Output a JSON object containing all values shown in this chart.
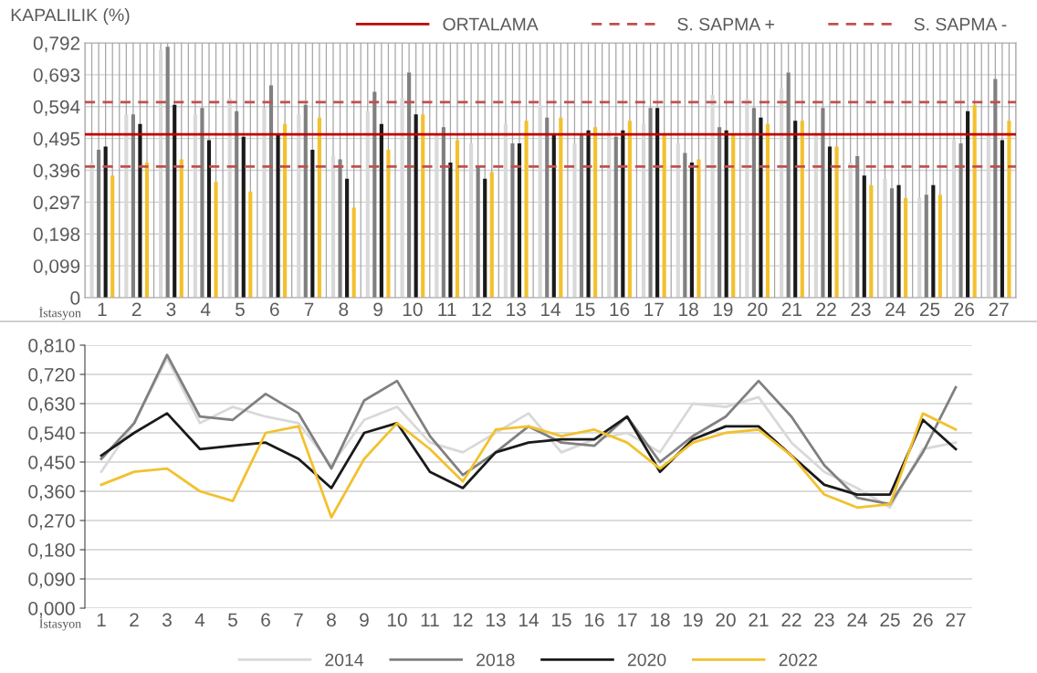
{
  "chart_data": [
    {
      "type": "bar",
      "ylabel": "KAPALILIK (%)",
      "xlabel": "İstasyon",
      "categories": [
        "1",
        "2",
        "3",
        "4",
        "5",
        "6",
        "7",
        "8",
        "9",
        "10",
        "11",
        "12",
        "13",
        "14",
        "15",
        "16",
        "17",
        "18",
        "19",
        "20",
        "21",
        "22",
        "23",
        "24",
        "25",
        "26",
        "27"
      ],
      "series": [
        {
          "color": "#d9d9d9",
          "values": [
            0.42,
            0.57,
            0.77,
            0.57,
            0.62,
            0.59,
            0.57,
            0.44,
            0.58,
            0.62,
            0.51,
            0.48,
            0.54,
            0.6,
            0.48,
            0.52,
            0.54,
            0.48,
            0.63,
            0.62,
            0.65,
            0.51,
            0.42,
            0.37,
            0.31,
            0.49,
            0.51
          ]
        },
        {
          "color": "#808080",
          "values": [
            0.46,
            0.57,
            0.78,
            0.59,
            0.58,
            0.66,
            0.6,
            0.43,
            0.64,
            0.7,
            0.53,
            0.41,
            0.48,
            0.56,
            0.51,
            0.5,
            0.59,
            0.45,
            0.53,
            0.59,
            0.7,
            0.59,
            0.44,
            0.34,
            0.32,
            0.48,
            0.68
          ]
        },
        {
          "color": "#1a1a1a",
          "values": [
            0.47,
            0.54,
            0.6,
            0.49,
            0.5,
            0.51,
            0.46,
            0.37,
            0.54,
            0.57,
            0.42,
            0.37,
            0.48,
            0.51,
            0.52,
            0.52,
            0.59,
            0.42,
            0.52,
            0.56,
            0.55,
            0.47,
            0.38,
            0.35,
            0.35,
            0.58,
            0.49
          ]
        },
        {
          "color": "#f2c12e",
          "values": [
            0.38,
            0.42,
            0.43,
            0.36,
            0.33,
            0.54,
            0.56,
            0.28,
            0.46,
            0.57,
            0.49,
            0.39,
            0.55,
            0.56,
            0.53,
            0.55,
            0.51,
            0.43,
            0.51,
            0.54,
            0.55,
            0.47,
            0.35,
            0.31,
            0.32,
            0.6,
            0.55
          ]
        }
      ],
      "ylim": [
        0,
        0.792
      ],
      "yticks": [
        {
          "value": 0,
          "label": "0"
        },
        {
          "value": 0.099,
          "label": "0,099"
        },
        {
          "value": 0.198,
          "label": "0,198"
        },
        {
          "value": 0.297,
          "label": "0,297"
        },
        {
          "value": 0.396,
          "label": "0,396"
        },
        {
          "value": 0.495,
          "label": "0,495"
        },
        {
          "value": 0.594,
          "label": "0,594"
        },
        {
          "value": 0.693,
          "label": "0,693"
        },
        {
          "value": 0.792,
          "label": "0,792"
        }
      ],
      "ref_lines": [
        {
          "axis": "y",
          "value": 0.508,
          "label": "ORTALAMA",
          "color": "#c00000",
          "line_style": "solid"
        },
        {
          "axis": "y",
          "value": 0.608,
          "label": "S. SAPMA +",
          "color": "#c0504d",
          "line_style": "dashed"
        },
        {
          "axis": "y",
          "value": 0.408,
          "label": "S. SAPMA -",
          "color": "#c0504d",
          "line_style": "dashed"
        }
      ],
      "grid": true,
      "legend": "top right"
    },
    {
      "type": "line",
      "xlabel": "İstasyon",
      "categories": [
        "1",
        "2",
        "3",
        "4",
        "5",
        "6",
        "7",
        "8",
        "9",
        "10",
        "11",
        "12",
        "13",
        "14",
        "15",
        "16",
        "17",
        "18",
        "19",
        "20",
        "21",
        "22",
        "23",
        "24",
        "25",
        "26",
        "27"
      ],
      "series": [
        {
          "name": "2014",
          "color": "#d9d9d9",
          "values": [
            0.42,
            0.57,
            0.77,
            0.57,
            0.62,
            0.59,
            0.57,
            0.44,
            0.58,
            0.62,
            0.51,
            0.48,
            0.54,
            0.6,
            0.48,
            0.52,
            0.54,
            0.48,
            0.63,
            0.62,
            0.65,
            0.51,
            0.42,
            0.37,
            0.31,
            0.49,
            0.51
          ]
        },
        {
          "name": "2018",
          "color": "#808080",
          "values": [
            0.46,
            0.57,
            0.78,
            0.59,
            0.58,
            0.66,
            0.6,
            0.43,
            0.64,
            0.7,
            0.53,
            0.41,
            0.48,
            0.56,
            0.51,
            0.5,
            0.59,
            0.45,
            0.53,
            0.59,
            0.7,
            0.59,
            0.44,
            0.34,
            0.32,
            0.48,
            0.68
          ]
        },
        {
          "name": "2020",
          "color": "#1a1a1a",
          "values": [
            0.47,
            0.54,
            0.6,
            0.49,
            0.5,
            0.51,
            0.46,
            0.37,
            0.54,
            0.57,
            0.42,
            0.37,
            0.48,
            0.51,
            0.52,
            0.52,
            0.59,
            0.42,
            0.52,
            0.56,
            0.56,
            0.47,
            0.38,
            0.35,
            0.35,
            0.58,
            0.49
          ]
        },
        {
          "name": "2022",
          "color": "#f2c12e",
          "values": [
            0.38,
            0.42,
            0.43,
            0.36,
            0.33,
            0.54,
            0.56,
            0.28,
            0.46,
            0.57,
            0.49,
            0.39,
            0.55,
            0.56,
            0.53,
            0.55,
            0.51,
            0.43,
            0.51,
            0.54,
            0.55,
            0.47,
            0.35,
            0.31,
            0.32,
            0.6,
            0.55
          ]
        }
      ],
      "ylim": [
        0,
        0.81
      ],
      "yticks": [
        {
          "value": 0,
          "label": "0,000"
        },
        {
          "value": 0.09,
          "label": "0,090"
        },
        {
          "value": 0.18,
          "label": "0,180"
        },
        {
          "value": 0.27,
          "label": "0,270"
        },
        {
          "value": 0.36,
          "label": "0,360"
        },
        {
          "value": 0.45,
          "label": "0,450"
        },
        {
          "value": 0.54,
          "label": "0,540"
        },
        {
          "value": 0.63,
          "label": "0,630"
        },
        {
          "value": 0.72,
          "label": "0,720"
        },
        {
          "value": 0.81,
          "label": "0,810"
        }
      ],
      "grid": "y",
      "legend": "bottom",
      "marker": "none",
      "line_style": "solid"
    }
  ]
}
